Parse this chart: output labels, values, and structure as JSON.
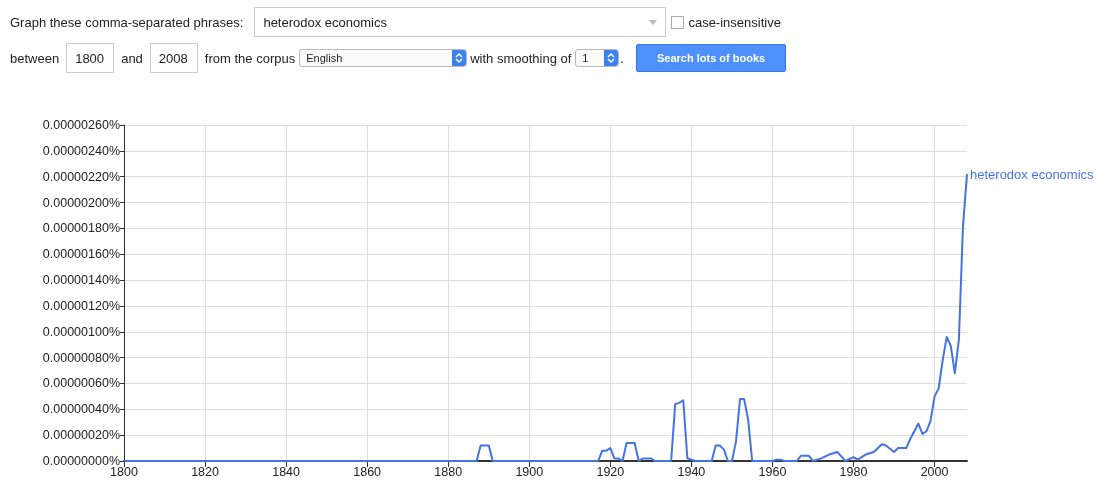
{
  "chart_data": {
    "type": "line",
    "annotations": [
      "Graph these comma-separated phrases:",
      "heterodox economics",
      "case-insensitive",
      "between",
      "1800",
      "and",
      "2008",
      "from the corpus",
      "English",
      "with smoothing of",
      "1",
      ".",
      "Search lots of books"
    ],
    "x": [
      1800,
      1887,
      1888,
      1890,
      1891,
      1917,
      1918,
      1919,
      1920,
      1921,
      1922,
      1923,
      1924,
      1926,
      1927,
      1928,
      1930,
      1931,
      1935,
      1936,
      1937,
      1938,
      1939,
      1940,
      1941,
      1945,
      1946,
      1947,
      1948,
      1949,
      1950,
      1951,
      1952,
      1953,
      1954,
      1955,
      1960,
      1961,
      1962,
      1963,
      1966,
      1967,
      1969,
      1970,
      1972,
      1974,
      1976,
      1978,
      1980,
      1981,
      1983,
      1985,
      1987,
      1988,
      1990,
      1991,
      1993,
      1994,
      1996,
      1997,
      1998,
      1999,
      2000,
      2001,
      2002,
      2003,
      2004,
      2005,
      2006,
      2007,
      2008
    ],
    "series": [
      {
        "name": "heterodox economics",
        "color": "#4374e0",
        "values": [
          0,
          0,
          1.2e-07,
          1.2e-07,
          0,
          0,
          8e-08,
          8e-08,
          1e-07,
          2e-08,
          2e-08,
          0,
          1.4e-07,
          1.4e-07,
          0,
          2e-08,
          2e-08,
          0,
          0,
          4.4e-07,
          4.5e-07,
          4.7e-07,
          2e-08,
          1e-08,
          0,
          0,
          1.2e-07,
          1.2e-07,
          9e-08,
          0,
          0,
          1.5e-07,
          4.8e-07,
          4.8e-07,
          3.2e-07,
          0,
          0,
          1e-08,
          1e-08,
          0,
          0,
          4e-08,
          4e-08,
          0,
          2e-08,
          5e-08,
          7e-08,
          0,
          3e-08,
          1e-08,
          5e-08,
          7e-08,
          1.3e-07,
          1.2e-07,
          7e-08,
          1e-07,
          1e-07,
          1.7e-07,
          2.9e-07,
          2.1e-07,
          2.3e-07,
          3.1e-07,
          5e-07,
          5.6e-07,
          7.8e-07,
          9.6e-07,
          8.9e-07,
          6.8e-07,
          9.4e-07,
          1.81e-06,
          2.22e-06
        ]
      }
    ],
    "xlim": [
      1800,
      2008
    ],
    "xticks": [
      1800,
      1820,
      1840,
      1860,
      1880,
      1900,
      1920,
      1940,
      1960,
      1980,
      2000
    ],
    "ylim": [
      0,
      2.6e-06
    ],
    "yticks": [
      {
        "value": 0,
        "label": "0.00000000%"
      },
      {
        "value": 2e-07,
        "label": "0.00000020%"
      },
      {
        "value": 4e-07,
        "label": "0.00000040%"
      },
      {
        "value": 6e-07,
        "label": "0.00000060%"
      },
      {
        "value": 8e-07,
        "label": "0.00000080%"
      },
      {
        "value": 1e-06,
        "label": "0.00000100%"
      },
      {
        "value": 1.2e-06,
        "label": "0.00000120%"
      },
      {
        "value": 1.4e-06,
        "label": "0.00000140%"
      },
      {
        "value": 1.6e-06,
        "label": "0.00000160%"
      },
      {
        "value": 1.8e-06,
        "label": "0.00000180%"
      },
      {
        "value": 2e-06,
        "label": "0.00000200%"
      },
      {
        "value": 2.2e-06,
        "label": "0.00000220%"
      },
      {
        "value": 2.4e-06,
        "label": "0.00000240%"
      },
      {
        "value": 2.6e-06,
        "label": "0.00000260%"
      }
    ],
    "grid": true,
    "legend": false,
    "marker": "none",
    "line_style": "solid"
  }
}
